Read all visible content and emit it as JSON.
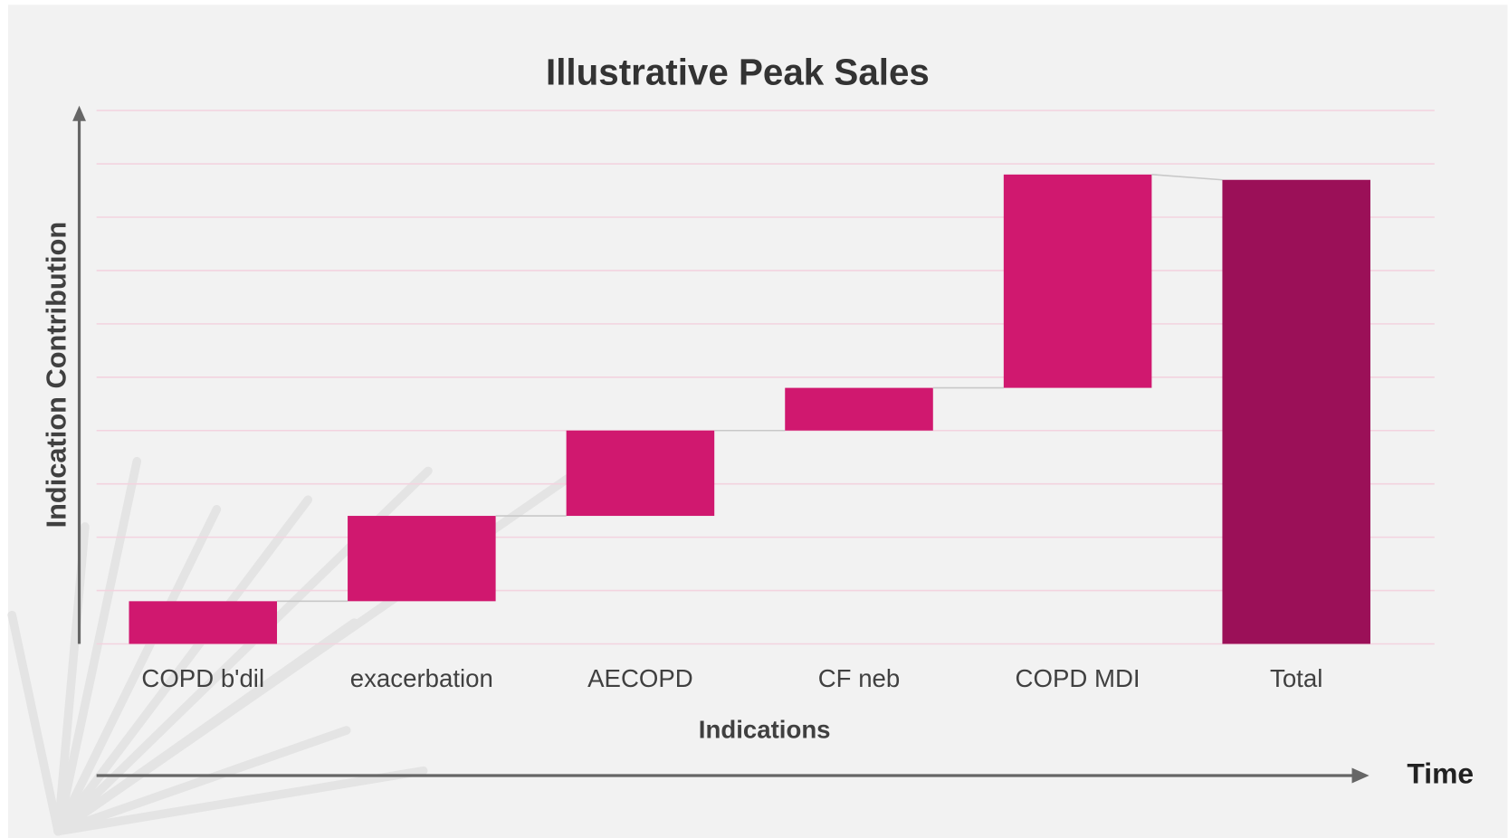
{
  "chart_data": {
    "type": "waterfall",
    "title": "Illustrative Peak Sales",
    "x_label": "Indications",
    "y_label": "Indication Contribution",
    "time_label": "Time",
    "categories": [
      "COPD b'dil",
      "exacerbation",
      "AECOPD",
      "CF neb",
      "COPD MDI",
      "Total"
    ],
    "values": [
      0.8,
      1.6,
      1.6,
      0.8,
      4.0,
      8.7
    ],
    "totals": [
      false,
      false,
      false,
      false,
      false,
      true
    ],
    "color": "#d0186f",
    "total_color": "#9b1058",
    "ylim": [
      0,
      10
    ],
    "yticks": [
      0,
      1,
      2,
      3,
      4,
      5,
      6,
      7,
      8,
      9,
      10
    ],
    "grid": true
  }
}
